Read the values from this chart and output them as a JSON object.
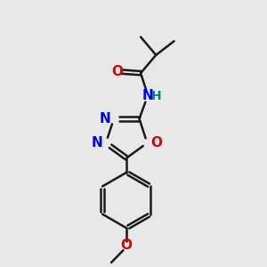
{
  "background_color": "#e8e8e8",
  "bond_color": "#1a1a1a",
  "N_color": "#0000ee",
  "O_color": "#dd0000",
  "H_color": "#008080",
  "C_color": "#1a1a1a",
  "lw": 1.8,
  "dbo": 0.055,
  "fs": 11,
  "figsize": [
    3.0,
    3.0
  ],
  "dpi": 100,
  "xlim": [
    2.5,
    8.0
  ],
  "ylim": [
    0.2,
    9.8
  ]
}
